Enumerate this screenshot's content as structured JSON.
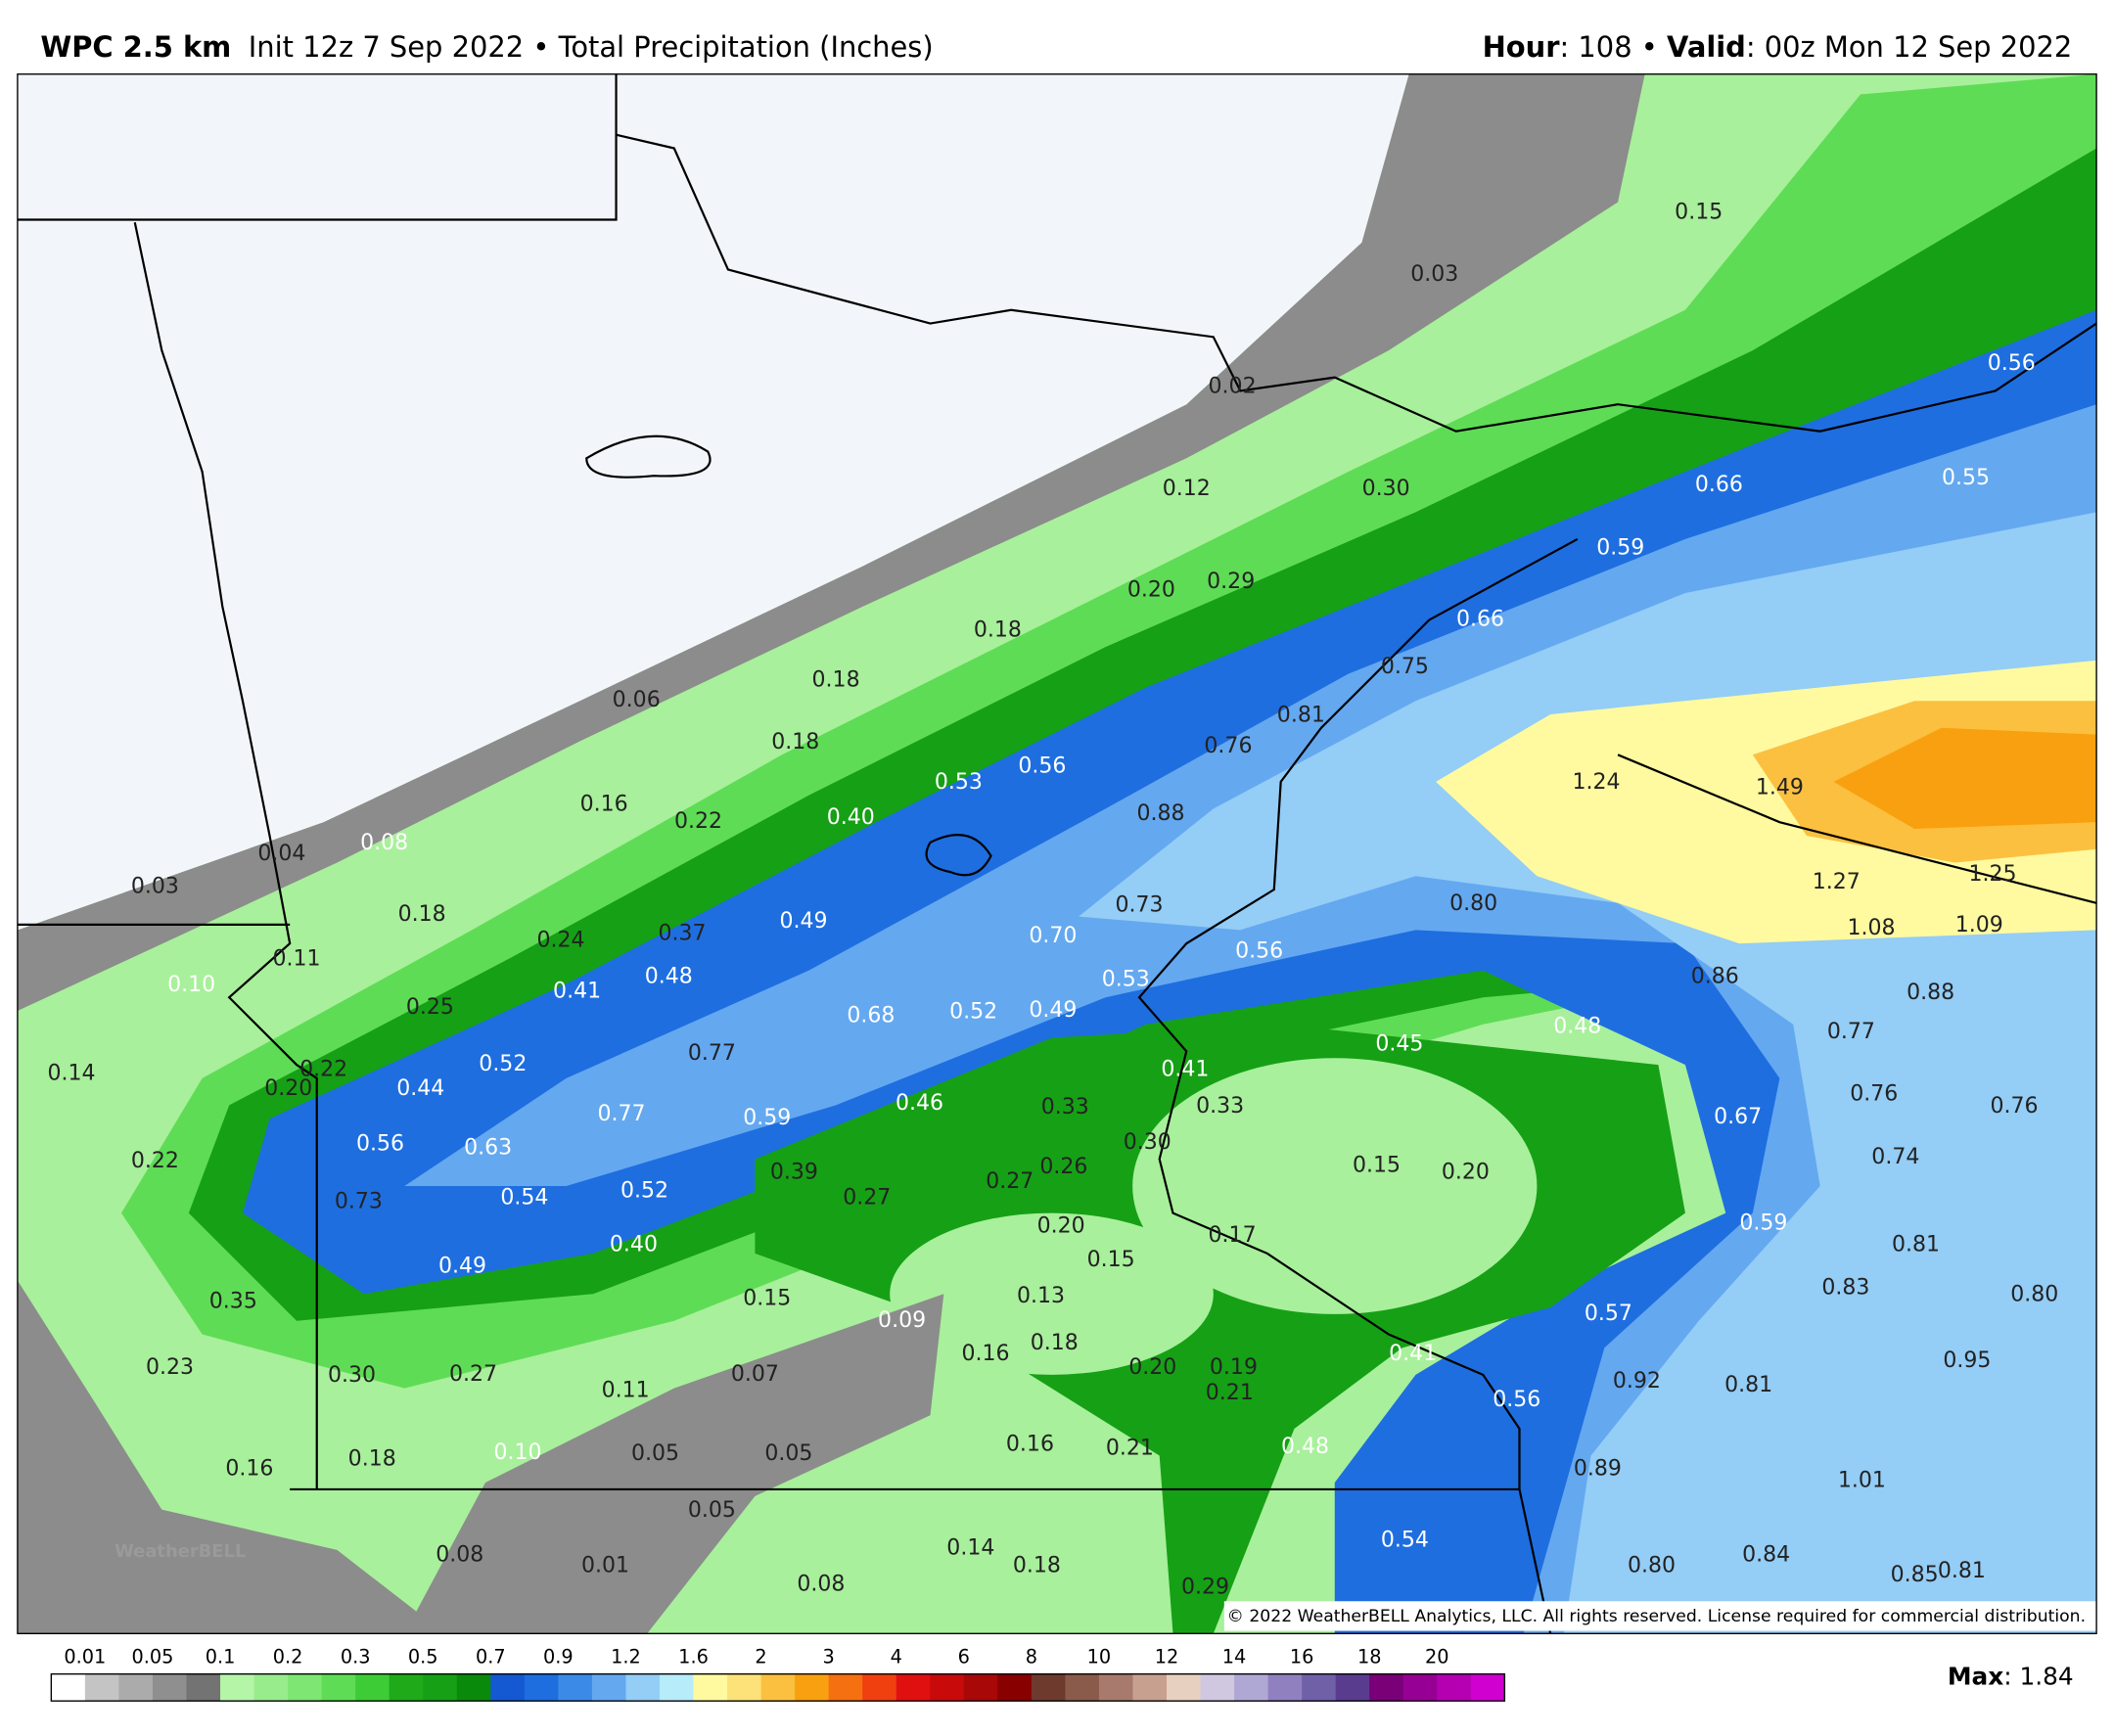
{
  "header": {
    "model": "WPC 2.5 km",
    "description": "Init 12z 7 Sep 2022 • Total Precipitation (Inches)",
    "hour_label": "Hour",
    "hour_value": ": 108 • ",
    "valid_label": "Valid",
    "valid_value": ": 00z Mon 12 Sep 2022"
  },
  "map_labels": [
    "0.15",
    "0.03",
    "0.02",
    "0.56",
    "0.12",
    "0.30",
    "0.66",
    "0.55",
    "0.59",
    "0.20",
    "0.29",
    "0.18",
    "0.66",
    "0.75",
    "0.18",
    "0.06",
    "0.81",
    "0.18",
    "0.76",
    "0.53",
    "0.56",
    "1.24",
    "1.49",
    "0.16",
    "0.22",
    "0.40",
    "0.88",
    "0.04",
    "0.08",
    "0.03",
    "1.27",
    "1.25",
    "0.18",
    "0.73",
    "0.80",
    "1.08",
    "1.09",
    "0.24",
    "0.37",
    "0.49",
    "0.70",
    "0.11",
    "0.10",
    "0.41",
    "0.48",
    "0.53",
    "0.56",
    "0.86",
    "0.88",
    "0.25",
    "0.68",
    "0.52",
    "0.49",
    "0.77",
    "0.48",
    "0.45",
    "0.14",
    "0.20",
    "0.22",
    "0.44",
    "0.52",
    "0.77",
    "0.41",
    "0.76",
    "0.76",
    "0.77",
    "0.59",
    "0.46",
    "0.33",
    "0.33",
    "0.67",
    "0.56",
    "0.63",
    "0.30",
    "0.22",
    "0.74",
    "0.15",
    "0.20",
    "0.39",
    "0.26",
    "0.27",
    "0.73",
    "0.54",
    "0.52",
    "0.27",
    "0.59",
    "0.20",
    "0.17",
    "0.81",
    "0.49",
    "0.40",
    "0.15",
    "0.83",
    "0.80",
    "0.35",
    "0.15",
    "0.13",
    "0.09",
    "0.57",
    "0.18",
    "0.16",
    "0.41",
    "0.95",
    "0.23",
    "0.30",
    "0.27",
    "0.07",
    "0.20",
    "0.19",
    "0.92",
    "0.81",
    "0.11",
    "0.21",
    "0.56",
    "0.16",
    "0.21",
    "0.48",
    "0.16",
    "0.18",
    "0.10",
    "0.05",
    "0.05",
    "0.89",
    "1.01",
    "0.05",
    "0.54",
    "0.14",
    "0.08",
    "0.01",
    "0.18",
    "0.80",
    "0.84",
    "0.85",
    "0.81",
    "0.08",
    "0.29"
  ],
  "logo": "WeatherBELL",
  "copyright": "© 2022 WeatherBELL Analytics, LLC. All rights reserved. License required for commercial distribution.",
  "colorbar": {
    "labels": [
      "0.01",
      "0.05",
      "0.1",
      "0.2",
      "0.3",
      "0.5",
      "0.7",
      "0.9",
      "1.2",
      "1.6",
      "2",
      "3",
      "4",
      "6",
      "8",
      "10",
      "12",
      "14",
      "16",
      "18",
      "20"
    ],
    "colors": [
      "#ffffff",
      "#c4c4c4",
      "#ababab",
      "#8f8f8f",
      "#737373",
      "#b4f5a8",
      "#98ec8c",
      "#7ee673",
      "#5fdc55",
      "#3ecc36",
      "#1faa1a",
      "#16a016",
      "#0a8a0a",
      "#1459d2",
      "#1e6ee0",
      "#3c8ae8",
      "#64a8f0",
      "#94cdf6",
      "#b7ecfa",
      "#fffaa0",
      "#fde27a",
      "#fbc040",
      "#f9a010",
      "#f57010",
      "#f04010",
      "#e01010",
      "#c80a0a",
      "#a80808",
      "#880000",
      "#6e3a2e",
      "#8a5a4a",
      "#a87a6e",
      "#c8a090",
      "#e8d0c0",
      "#d0c8e0",
      "#b0a8d4",
      "#9080c0",
      "#7060a8",
      "#5a3c8e",
      "#7a0078",
      "#960094",
      "#b400b0",
      "#d000d0"
    ]
  },
  "max": {
    "label": "Max",
    "value": ": 1.84"
  }
}
